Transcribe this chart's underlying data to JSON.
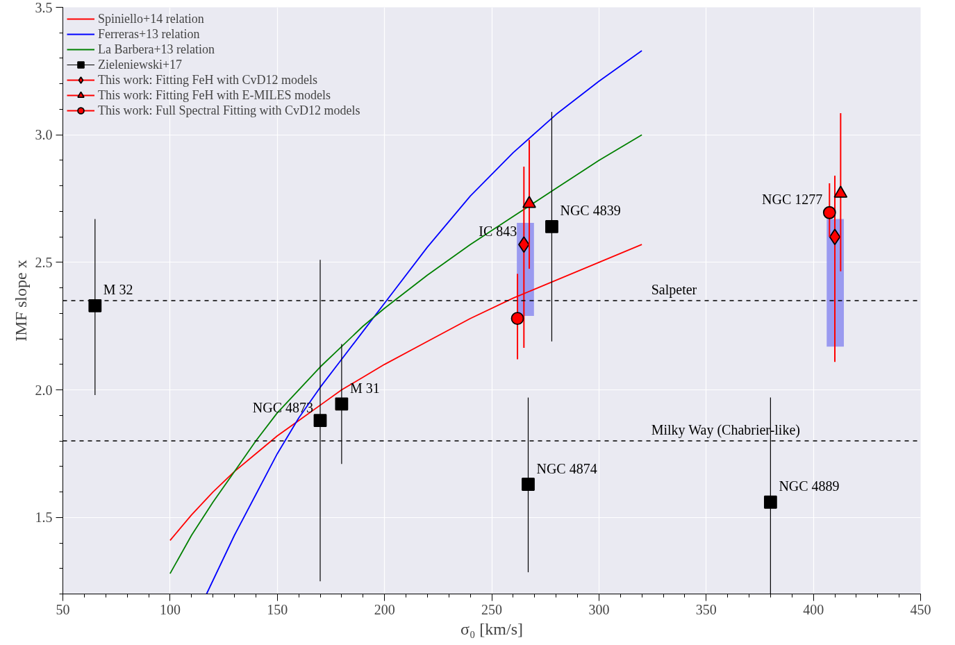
{
  "chart_data": {
    "type": "scatter",
    "xlabel": "σ₀ [km/s]",
    "ylabel": "IMF slope x",
    "xlim": [
      50,
      450
    ],
    "ylim": [
      1.2,
      3.5
    ],
    "xticks": [
      50,
      100,
      150,
      200,
      250,
      300,
      350,
      400,
      450
    ],
    "yticks": [
      {
        "value": 1.5,
        "label": "1.5"
      },
      {
        "value": 2,
        "label": "2.0"
      },
      {
        "value": 2.5,
        "label": "2.5"
      },
      {
        "value": 3,
        "label": "3.0"
      },
      {
        "value": 3.5,
        "label": "3.5"
      }
    ],
    "grid": true,
    "legend": "top left",
    "series": [
      {
        "type": "bar",
        "color": "#8c8cf0",
        "x": [
          265.7,
          410.2
        ],
        "base": [
          2.29,
          2.17
        ],
        "values": [
          0.365,
          0.5
        ]
      },
      {
        "type": "line",
        "name": "Spiniello+14 relation",
        "color": "#ff0000",
        "x": [
          100,
          110,
          120,
          130,
          140,
          150,
          160,
          170,
          180,
          190,
          200,
          220,
          240,
          260,
          280,
          300,
          320
        ],
        "values": [
          1.41,
          1.51,
          1.6,
          1.68,
          1.75,
          1.82,
          1.88,
          1.94,
          2.0,
          2.05,
          2.1,
          2.19,
          2.28,
          2.36,
          2.43,
          2.5,
          2.57
        ]
      },
      {
        "type": "line",
        "name": "Ferreras+13 relation",
        "color": "#0000ff",
        "x": [
          117,
          130,
          140,
          150,
          160,
          170,
          180,
          190,
          200,
          220,
          240,
          260,
          280,
          300,
          320
        ],
        "values": [
          1.2,
          1.43,
          1.59,
          1.75,
          1.89,
          2.01,
          2.12,
          2.23,
          2.34,
          2.56,
          2.76,
          2.93,
          3.08,
          3.21,
          3.33
        ]
      },
      {
        "type": "line",
        "name": "La Barbera+13 relation",
        "color": "#008000",
        "x": [
          100,
          110,
          120,
          130,
          140,
          150,
          170,
          190,
          200,
          220,
          240,
          260,
          280,
          300,
          320
        ],
        "values": [
          1.28,
          1.43,
          1.56,
          1.68,
          1.8,
          1.91,
          2.09,
          2.25,
          2.32,
          2.45,
          2.57,
          2.68,
          2.79,
          2.9,
          3.0
        ]
      },
      {
        "name": "Zieleniewski+17",
        "color": "#000000",
        "marker": "square",
        "x": [
          65,
          170,
          180,
          267,
          278,
          380
        ],
        "values": [
          2.33,
          1.88,
          1.945,
          1.63,
          2.64,
          1.56
        ],
        "errors": [
          [
            1.98,
            2.67
          ],
          [
            1.25,
            2.51
          ],
          [
            1.71,
            2.18
          ],
          [
            1.285,
            1.97
          ],
          [
            2.19,
            3.09
          ],
          [
            1.2,
            1.97
          ]
        ]
      },
      {
        "name": "This work: Fitting FeH with CvD12 models",
        "color": "#ff0000",
        "marker": "diamond",
        "x": [
          265,
          410
        ],
        "values": [
          2.57,
          2.6
        ],
        "errors": [
          [
            2.165,
            2.875
          ],
          [
            2.11,
            2.84
          ]
        ]
      },
      {
        "name": "This work: Fitting FeH with E-MILES models",
        "color": "#ff0000",
        "marker": "triangle",
        "x": [
          267.5,
          412.7
        ],
        "values": [
          2.73,
          2.77
        ],
        "errors": [
          [
            2.475,
            2.98
          ],
          [
            2.465,
            3.085
          ]
        ]
      },
      {
        "name": "This work: Full Spectral Fitting with CvD12 models",
        "color": "#ff0000",
        "marker": "circle",
        "x": [
          262,
          407.5
        ],
        "values": [
          2.28,
          2.695
        ],
        "errors": [
          [
            2.12,
            2.455
          ],
          [
            2.6,
            2.81
          ]
        ]
      }
    ],
    "ref_lines": [
      {
        "axis": "y",
        "value": 2.35,
        "label": "Salpeter",
        "color": "#000000",
        "line_style": "dashed"
      },
      {
        "axis": "y",
        "value": 1.8,
        "label": "Milky Way (Chabrier-like)",
        "color": "#000000",
        "line_style": "dashed"
      }
    ],
    "annotations": [
      {
        "text": "M 32",
        "x": 65,
        "y": 2.33
      },
      {
        "text": "NGC 4873",
        "x": 170,
        "y": 1.88
      },
      {
        "text": "M 31",
        "x": 180,
        "y": 1.945
      },
      {
        "text": "NGC 4874",
        "x": 267,
        "y": 1.63
      },
      {
        "text": "NGC 4839",
        "x": 278,
        "y": 2.64
      },
      {
        "text": "IC 843",
        "x": 265,
        "y": 2.57
      },
      {
        "text": "NGC 4889",
        "x": 380,
        "y": 1.56
      },
      {
        "text": "NGC 1277",
        "x": 407.5,
        "y": 2.695
      }
    ]
  }
}
